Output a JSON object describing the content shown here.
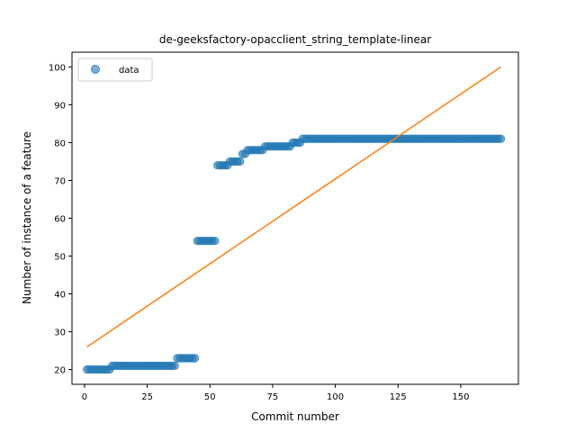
{
  "chart_data": {
    "type": "scatter",
    "title": "de-geeksfactory-opacclient_string_template-linear",
    "xlabel": "Commit number",
    "ylabel": "Number of instance of a feature",
    "xlim": [
      -5,
      173
    ],
    "ylim": [
      16.1,
      103.9
    ],
    "xticks": [
      0,
      25,
      50,
      75,
      100,
      125,
      150
    ],
    "yticks": [
      20,
      30,
      40,
      50,
      60,
      70,
      80,
      90,
      100
    ],
    "grid": false,
    "legend": {
      "placement": "top-left",
      "entries": [
        "data"
      ]
    },
    "colors": {
      "data": "#1f77b4",
      "fit": "#ff7f0e"
    },
    "series": [
      {
        "name": "data",
        "kind": "scatter",
        "steps": [
          {
            "from": 1,
            "to": 10,
            "y": 20
          },
          {
            "from": 11,
            "to": 36,
            "y": 21
          },
          {
            "from": 37,
            "to": 44,
            "y": 23
          },
          {
            "from": 45,
            "to": 52,
            "y": 54
          },
          {
            "from": 53,
            "to": 57,
            "y": 74
          },
          {
            "from": 58,
            "to": 62,
            "y": 75
          },
          {
            "from": 63,
            "to": 64,
            "y": 77
          },
          {
            "from": 65,
            "to": 71,
            "y": 78
          },
          {
            "from": 72,
            "to": 82,
            "y": 79
          },
          {
            "from": 83,
            "to": 86,
            "y": 80
          },
          {
            "from": 87,
            "to": 166,
            "y": 81
          }
        ]
      },
      {
        "kind": "line",
        "x": [
          1,
          166
        ],
        "y": [
          26,
          100
        ]
      }
    ]
  }
}
